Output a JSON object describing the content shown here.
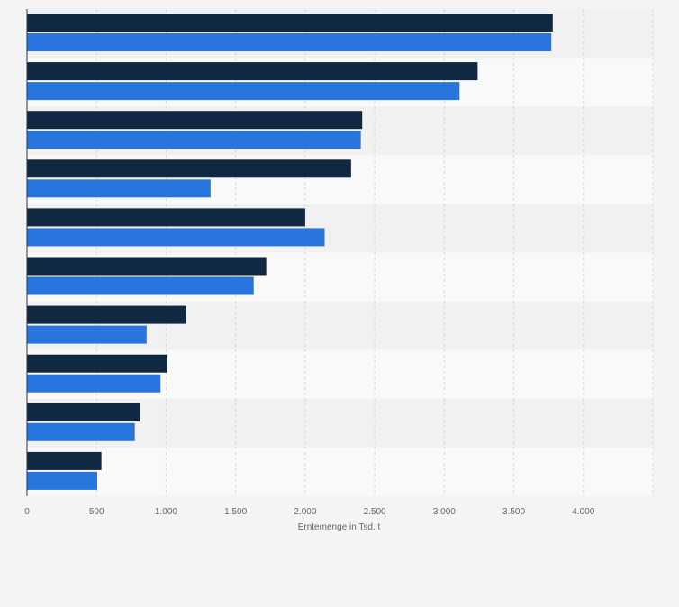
{
  "colors": {
    "background": "#f4f4f4",
    "band_light": "#f9f9f9",
    "band_dark": "#f1f1f1",
    "grid": "#d8d8d8",
    "axis": "#333333",
    "series_dark": "#102841",
    "series_blue": "#2876dd",
    "tick_text": "#666666"
  },
  "chart_data": {
    "type": "bar",
    "orientation": "horizontal",
    "categories": [
      "",
      "",
      "",
      "",
      "",
      "",
      "",
      "",
      "",
      ""
    ],
    "series": [
      {
        "values": [
          3780,
          3240,
          2410,
          2330,
          2000,
          1720,
          1145,
          1010,
          810,
          535
        ]
      },
      {
        "values": [
          3770,
          3110,
          2400,
          1320,
          2140,
          1630,
          860,
          960,
          775,
          505
        ]
      }
    ],
    "x_ticks": [
      0,
      500,
      1000,
      1500,
      2000,
      2500,
      3000,
      3500,
      4000
    ],
    "x_tick_labels": [
      "0",
      "500",
      "1.000",
      "1.500",
      "2.000",
      "2.500",
      "3.000",
      "3.500",
      "4.000"
    ],
    "xlim": [
      0,
      4500
    ],
    "xlabel": "Erntemenge in Tsd. t",
    "ylabel": "",
    "title": "",
    "grid": true,
    "legend": "none"
  }
}
